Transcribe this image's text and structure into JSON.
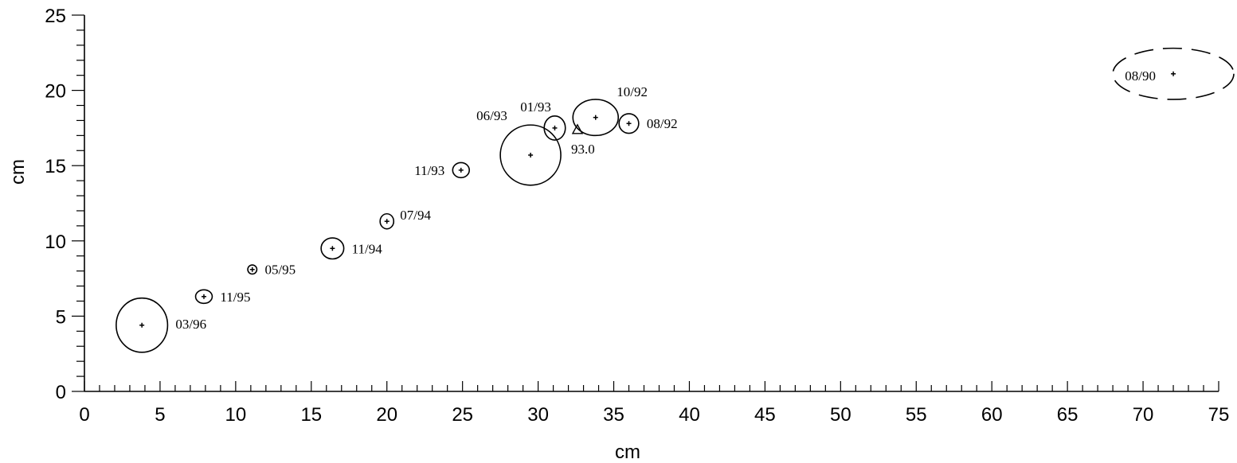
{
  "chart_data": {
    "type": "scatter",
    "title": "",
    "xlabel": "cm",
    "ylabel": "cm",
    "xlim": [
      0,
      75
    ],
    "ylim": [
      0,
      25
    ],
    "x_major_ticks": [
      0,
      5,
      10,
      15,
      20,
      25,
      30,
      35,
      40,
      45,
      50,
      55,
      60,
      65,
      70,
      75
    ],
    "y_major_ticks": [
      0,
      5,
      10,
      15,
      20,
      25
    ],
    "x_minor_step": 1,
    "y_minor_step": 1,
    "grid": false,
    "points": [
      {
        "label": "08/90",
        "x": 72.0,
        "y": 21.1,
        "err_x": 4.0,
        "err_y": 1.7,
        "dashed": true
      },
      {
        "label": "08/92",
        "x": 36.0,
        "y": 17.8,
        "err_x": 0.65,
        "err_y": 0.65
      },
      {
        "label": "10/92",
        "x": 33.8,
        "y": 18.2,
        "err_x": 1.5,
        "err_y": 1.2
      },
      {
        "label": "01/93",
        "x": 31.1,
        "y": 17.5,
        "err_x": 0.7,
        "err_y": 0.8
      },
      {
        "label": "06/93",
        "x": 29.5,
        "y": 15.7,
        "err_x": 2.0,
        "err_y": 2.0
      },
      {
        "label": "11/93",
        "x": 24.9,
        "y": 14.7,
        "err_x": 0.55,
        "err_y": 0.5
      },
      {
        "label": "07/94",
        "x": 20.0,
        "y": 11.3,
        "err_x": 0.45,
        "err_y": 0.5
      },
      {
        "label": "11/94",
        "x": 16.4,
        "y": 9.5,
        "err_x": 0.75,
        "err_y": 0.7
      },
      {
        "label": "05/95",
        "x": 11.1,
        "y": 8.1,
        "err_x": 0.3,
        "err_y": 0.3
      },
      {
        "label": "11/95",
        "x": 7.9,
        "y": 6.3,
        "err_x": 0.55,
        "err_y": 0.45
      },
      {
        "label": "03/96",
        "x": 3.8,
        "y": 4.4,
        "err_x": 1.7,
        "err_y": 1.8
      }
    ],
    "reference_marker": {
      "label": "93.0",
      "x": 32.6,
      "y": 17.4,
      "shape": "triangle"
    }
  }
}
